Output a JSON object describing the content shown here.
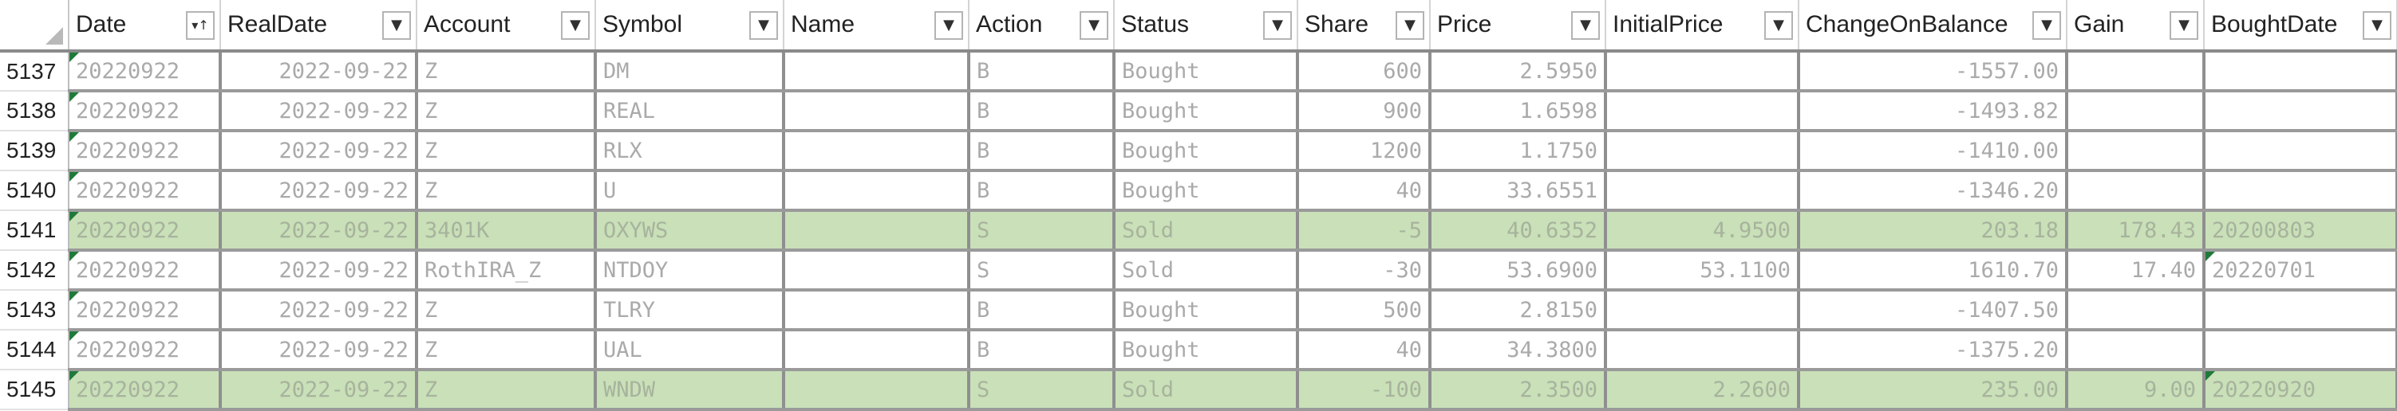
{
  "sheet": {
    "columns": [
      {
        "key": "Date",
        "label": "Date",
        "align": "txt",
        "sorted": true
      },
      {
        "key": "RealDate",
        "label": "RealDate",
        "align": "num",
        "sorted": false
      },
      {
        "key": "Account",
        "label": "Account",
        "align": "txt",
        "sorted": false
      },
      {
        "key": "Symbol",
        "label": "Symbol",
        "align": "txt",
        "sorted": false
      },
      {
        "key": "Name",
        "label": "Name",
        "align": "txt",
        "sorted": false
      },
      {
        "key": "Action",
        "label": "Action",
        "align": "txt",
        "sorted": false
      },
      {
        "key": "Status",
        "label": "Status",
        "align": "txt",
        "sorted": false
      },
      {
        "key": "Share",
        "label": "Share",
        "align": "num",
        "sorted": false
      },
      {
        "key": "Price",
        "label": "Price",
        "align": "num",
        "sorted": false
      },
      {
        "key": "InitialPrice",
        "label": "InitialPrice",
        "align": "num",
        "sorted": false
      },
      {
        "key": "ChangeOnBalance",
        "label": "ChangeOnBalance",
        "align": "num",
        "sorted": false
      },
      {
        "key": "Gain",
        "label": "Gain",
        "align": "num",
        "sorted": false
      },
      {
        "key": "BoughtDate",
        "label": "BoughtDate",
        "align": "txt",
        "sorted": false
      }
    ],
    "icons": {
      "filter": "dropdown-arrow-icon",
      "sorted_filter": "sort-filter-icon",
      "corner": "select-all-icon"
    },
    "colors": {
      "highlight": "#c9e0b8",
      "error_indicator": "#1f7a3a"
    },
    "rows": [
      {
        "row": "5137",
        "highlight": false,
        "cells": [
          "20220922",
          "2022-09-22",
          "Z",
          "DM",
          "",
          "B",
          "Bought",
          "600",
          "2.5950",
          "",
          "-1557.00",
          "",
          ""
        ],
        "flags": [
          0
        ]
      },
      {
        "row": "5138",
        "highlight": false,
        "cells": [
          "20220922",
          "2022-09-22",
          "Z",
          "REAL",
          "",
          "B",
          "Bought",
          "900",
          "1.6598",
          "",
          "-1493.82",
          "",
          ""
        ],
        "flags": [
          0
        ]
      },
      {
        "row": "5139",
        "highlight": false,
        "cells": [
          "20220922",
          "2022-09-22",
          "Z",
          "RLX",
          "",
          "B",
          "Bought",
          "1200",
          "1.1750",
          "",
          "-1410.00",
          "",
          ""
        ],
        "flags": [
          0
        ]
      },
      {
        "row": "5140",
        "highlight": false,
        "cells": [
          "20220922",
          "2022-09-22",
          "Z",
          "U",
          "",
          "B",
          "Bought",
          "40",
          "33.6551",
          "",
          "-1346.20",
          "",
          ""
        ],
        "flags": [
          0
        ]
      },
      {
        "row": "5141",
        "highlight": true,
        "cells": [
          "20220922",
          "2022-09-22",
          "3401K",
          "OXYWS",
          "",
          "S",
          "Sold",
          "-5",
          "40.6352",
          "4.9500",
          "203.18",
          "178.43",
          "20200803"
        ],
        "flags": [
          0
        ]
      },
      {
        "row": "5142",
        "highlight": false,
        "cells": [
          "20220922",
          "2022-09-22",
          "RothIRA_Z",
          "NTDOY",
          "",
          "S",
          "Sold",
          "-30",
          "53.6900",
          "53.1100",
          "1610.70",
          "17.40",
          "20220701"
        ],
        "flags": [
          0,
          12
        ]
      },
      {
        "row": "5143",
        "highlight": false,
        "cells": [
          "20220922",
          "2022-09-22",
          "Z",
          "TLRY",
          "",
          "B",
          "Bought",
          "500",
          "2.8150",
          "",
          "-1407.50",
          "",
          ""
        ],
        "flags": [
          0
        ]
      },
      {
        "row": "5144",
        "highlight": false,
        "cells": [
          "20220922",
          "2022-09-22",
          "Z",
          "UAL",
          "",
          "B",
          "Bought",
          "40",
          "34.3800",
          "",
          "-1375.20",
          "",
          ""
        ],
        "flags": [
          0
        ]
      },
      {
        "row": "5145",
        "highlight": true,
        "cells": [
          "20220922",
          "2022-09-22",
          "Z",
          "WNDW",
          "",
          "S",
          "Sold",
          "-100",
          "2.3500",
          "2.2600",
          "235.00",
          "9.00",
          "20220920"
        ],
        "flags": [
          0,
          12
        ]
      }
    ]
  }
}
